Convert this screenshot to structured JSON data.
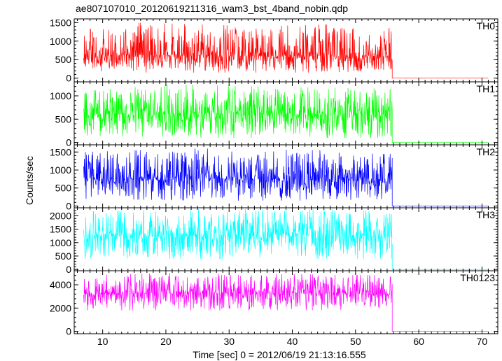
{
  "title": "ae807107010_20120619211316_wam3_bst_4band_nobin.qdp",
  "chart_data": {
    "type": "line",
    "title": "ae807107010_20120619211316_wam3_bst_4band_nobin.qdp",
    "xlabel": "Time [sec] 0 = 2012/06/19 21:13:16.555",
    "ylabel": "Counts/sec",
    "xlim": [
      5.5,
      72.5
    ],
    "xticks": [
      10,
      20,
      30,
      40,
      50,
      60,
      70
    ],
    "data_end_time": 56.0,
    "grid": false,
    "series": [
      {
        "name": "TH0",
        "color": "#ff0000",
        "ylim": [
          -100,
          1600
        ],
        "yticks": [
          0,
          500,
          1000,
          1500
        ],
        "tail_value": 0,
        "samples": [
          {
            "t": 7,
            "mean": 600,
            "min": 200,
            "max": 1300
          },
          {
            "t": 15,
            "mean": 620,
            "min": 150,
            "max": 1500
          },
          {
            "t": 25,
            "mean": 610,
            "min": 150,
            "max": 1450
          },
          {
            "t": 35,
            "mean": 600,
            "min": 150,
            "max": 1400
          },
          {
            "t": 45,
            "mean": 610,
            "min": 150,
            "max": 1450
          },
          {
            "t": 55.8,
            "mean": 600,
            "min": 200,
            "max": 1350
          }
        ]
      },
      {
        "name": "TH1",
        "color": "#00ff00",
        "ylim": [
          -50,
          1300
        ],
        "yticks": [
          0,
          500,
          1000
        ],
        "tail_value": 0,
        "samples": [
          {
            "t": 7,
            "mean": 600,
            "min": 100,
            "max": 1100
          },
          {
            "t": 20,
            "mean": 620,
            "min": 100,
            "max": 1250
          },
          {
            "t": 35,
            "mean": 610,
            "min": 100,
            "max": 1200
          },
          {
            "t": 55.8,
            "mean": 600,
            "min": 100,
            "max": 1150
          }
        ]
      },
      {
        "name": "TH2",
        "color": "#0000ff",
        "ylim": [
          -50,
          1700
        ],
        "yticks": [
          0,
          500,
          1000,
          1500
        ],
        "tail_value": 0,
        "samples": [
          {
            "t": 7,
            "mean": 750,
            "min": 200,
            "max": 1500
          },
          {
            "t": 25,
            "mean": 760,
            "min": 150,
            "max": 1600
          },
          {
            "t": 45,
            "mean": 750,
            "min": 150,
            "max": 1550
          },
          {
            "t": 55.8,
            "mean": 740,
            "min": 200,
            "max": 1500
          }
        ]
      },
      {
        "name": "TH3",
        "color": "#00ffff",
        "ylim": [
          -50,
          2300
        ],
        "yticks": [
          0,
          500,
          1000,
          1500,
          2000
        ],
        "tail_value": 0,
        "samples": [
          {
            "t": 7,
            "mean": 1250,
            "min": 400,
            "max": 2150
          },
          {
            "t": 25,
            "mean": 1270,
            "min": 400,
            "max": 2250
          },
          {
            "t": 45,
            "mean": 1260,
            "min": 400,
            "max": 2250
          },
          {
            "t": 55.8,
            "mean": 1250,
            "min": 400,
            "max": 2150
          }
        ]
      },
      {
        "name": "TH0123",
        "color": "#ff00ff",
        "ylim": [
          -200,
          5200
        ],
        "yticks": [
          0,
          2000,
          4000
        ],
        "tail_value": 0,
        "samples": [
          {
            "t": 7,
            "mean": 3250,
            "min": 1800,
            "max": 4800
          },
          {
            "t": 20,
            "mean": 3300,
            "min": 1800,
            "max": 5000
          },
          {
            "t": 40,
            "mean": 3280,
            "min": 1800,
            "max": 4900
          },
          {
            "t": 55.8,
            "mean": 3250,
            "min": 1900,
            "max": 4800
          }
        ]
      }
    ]
  }
}
